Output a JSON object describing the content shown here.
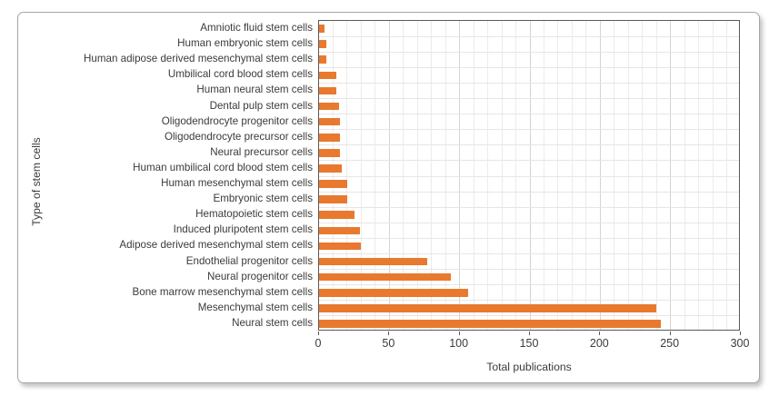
{
  "chart_data": {
    "type": "bar",
    "orientation": "horizontal",
    "xlabel": "Total publications",
    "ylabel": "Type of stem cells",
    "xlim": [
      0,
      300
    ],
    "xticks": [
      0,
      50,
      100,
      150,
      200,
      250,
      300
    ],
    "minor_grid_step": 10,
    "grid": {
      "vertical_major": true,
      "vertical_minor": true,
      "horizontal_rows": true
    },
    "legend_position": "none",
    "categories": [
      "Amniotic fluid stem cells",
      "Human embryonic stem cells",
      "Human adipose derived mesenchymal stem cells",
      "Umbilical cord blood stem cells",
      "Human neural stem cells",
      "Dental pulp stem cells",
      "Oligodendrocyte progenitor cells",
      "Oligodendrocyte precursor cells",
      "Neural precursor cells",
      "Human umbilical cord blood stem cells",
      "Human mesenchymal stem cells",
      "Embryonic stem cells",
      "Hematopoietic stem cells",
      "Induced pluripotent stem cells",
      "Adipose derived mesenchymal stem cells",
      "Endothelial progenitor cells",
      "Neural progenitor cells",
      "Bone marrow mesenchymal stem cells",
      "Mesenchymal stem cells",
      "Neural stem cells"
    ],
    "values": [
      4,
      5,
      5,
      12,
      12,
      14,
      15,
      15,
      15,
      16,
      20,
      20,
      25,
      29,
      30,
      77,
      94,
      106,
      240,
      243
    ]
  },
  "colors": {
    "bar": "#E8792E",
    "axis_frame": "#595959",
    "grid_major": "#d4d4d4",
    "grid_minor": "#ececec",
    "grid_row": "#e6e6e6",
    "text": "#3b3b3b",
    "card_border": "#a6a6a6",
    "background": "#ffffff"
  }
}
